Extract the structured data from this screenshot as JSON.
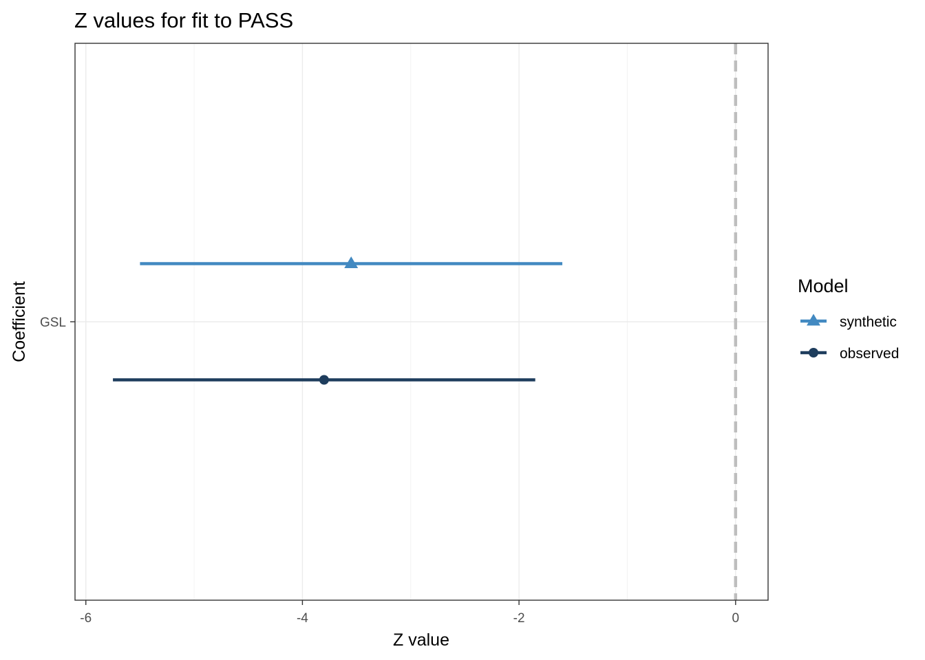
{
  "chart_data": {
    "type": "scatter",
    "title": "Z values for fit to PASS",
    "xlabel": "Z value",
    "ylabel": "Coefficient",
    "xlim": [
      -6.1,
      0.3
    ],
    "x_ticks": [
      -6,
      -4,
      -2,
      0
    ],
    "x_tick_labels": [
      "-6",
      "-4",
      "-2",
      "0"
    ],
    "categories": [
      "GSL"
    ],
    "reference_line": {
      "x": 0,
      "style": "dashed",
      "color": "#bebebe"
    },
    "grid": true,
    "legend": {
      "title": "Model",
      "position": "right"
    },
    "series": [
      {
        "name": "synthetic",
        "color": "#4289c1",
        "marker": "triangle",
        "estimate": -3.55,
        "lower": -5.5,
        "upper": -1.6
      },
      {
        "name": "observed",
        "color": "#1e3d5d",
        "marker": "circle",
        "estimate": -3.8,
        "lower": -5.75,
        "upper": -1.85
      }
    ]
  }
}
